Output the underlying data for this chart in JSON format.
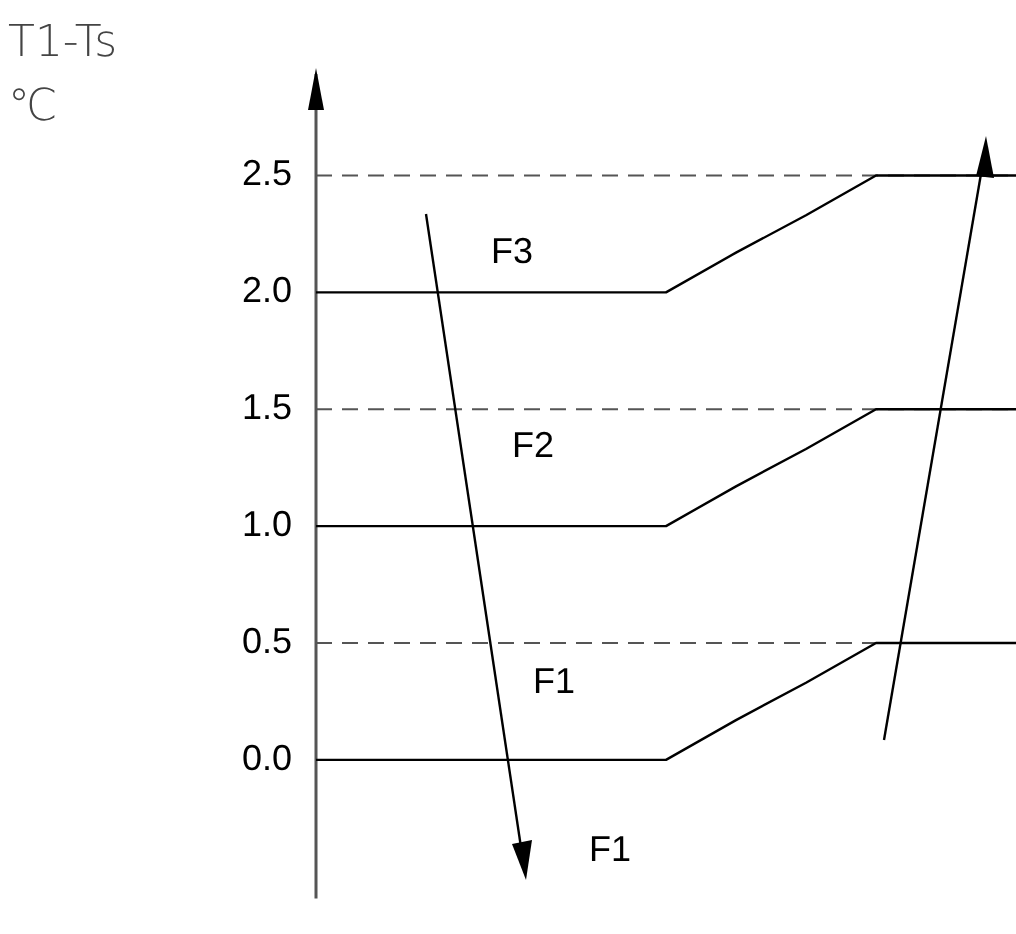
{
  "chart_data": {
    "type": "line",
    "ylabel": "T1-Ts ℃",
    "categories": [
      null,
      null,
      null,
      null,
      null,
      null,
      null,
      null,
      null,
      null,
      null
    ],
    "series": [
      {
        "color": "#000000",
        "values": [
          0,
          0,
          0,
          0,
          0,
          0,
          0.17,
          0.33,
          0.5,
          0.5,
          0.5
        ]
      },
      {
        "color": "#000000",
        "values": [
          1,
          1,
          1,
          1,
          1,
          1,
          1.17,
          1.33,
          1.5,
          1.5,
          1.5
        ]
      },
      {
        "color": "#000000",
        "values": [
          2,
          2,
          2,
          2,
          2,
          2,
          2.17,
          2.33,
          2.5,
          2.5,
          2.5
        ]
      }
    ],
    "ylim": [
      -0.55,
      2.9
    ],
    "yticks": [
      {
        "value": 0,
        "label": "0.0"
      },
      {
        "value": 0.5,
        "label": "0.5"
      },
      {
        "value": 1,
        "label": "1.0"
      },
      {
        "value": 1.5,
        "label": "1.5"
      },
      {
        "value": 2,
        "label": "2.0"
      },
      {
        "value": 2.5,
        "label": "2.5"
      }
    ],
    "ref_lines": [
      {
        "axis": "y",
        "value": 0.5,
        "color": "#555555",
        "line_style": "dashed"
      },
      {
        "axis": "y",
        "value": 1.5,
        "color": "#555555",
        "line_style": "dashed"
      },
      {
        "axis": "y",
        "value": 2.5,
        "color": "#555555",
        "line_style": "dashed"
      }
    ],
    "annotations": [
      "F3",
      "F2",
      "F1",
      "F1"
    ],
    "grid": false,
    "legend": false,
    "marker": "none",
    "line_style": "solid"
  }
}
